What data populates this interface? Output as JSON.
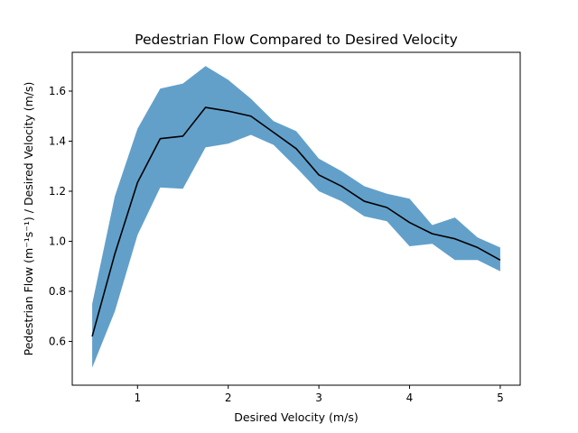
{
  "chart_data": {
    "type": "area",
    "title": "Pedestrian Flow Compared to Desired Velocity",
    "xlabel": "Desired Velocity (m/s)",
    "ylabel": "Pedestrian Flow (m⁻¹s⁻¹) / Desired Velocity (m/s)",
    "xlim": [
      0.28,
      5.22
    ],
    "ylim": [
      0.425,
      1.755
    ],
    "x_ticks": [
      1,
      2,
      3,
      4,
      5
    ],
    "x_tick_labels": [
      "1",
      "2",
      "3",
      "4",
      "5"
    ],
    "y_ticks": [
      0.6,
      0.8,
      1.0,
      1.2,
      1.4,
      1.6
    ],
    "y_tick_labels": [
      "0.6",
      "0.8",
      "1.0",
      "1.2",
      "1.4",
      "1.6"
    ],
    "grid": false,
    "x": [
      0.5,
      0.75,
      1.0,
      1.25,
      1.5,
      1.75,
      2.0,
      2.25,
      2.5,
      2.75,
      3.0,
      3.25,
      3.5,
      3.75,
      4.0,
      4.25,
      4.5,
      4.75,
      5.0
    ],
    "mean": [
      0.62,
      0.95,
      1.235,
      1.41,
      1.42,
      1.535,
      1.52,
      1.5,
      1.435,
      1.37,
      1.265,
      1.22,
      1.16,
      1.135,
      1.075,
      1.03,
      1.01,
      0.975,
      0.925
    ],
    "upper": [
      0.75,
      1.18,
      1.45,
      1.61,
      1.63,
      1.7,
      1.645,
      1.57,
      1.48,
      1.44,
      1.33,
      1.28,
      1.22,
      1.19,
      1.17,
      1.065,
      1.095,
      1.015,
      0.975
    ],
    "lower": [
      0.495,
      0.72,
      1.025,
      1.215,
      1.21,
      1.375,
      1.39,
      1.425,
      1.385,
      1.295,
      1.2,
      1.16,
      1.1,
      1.08,
      0.98,
      0.99,
      0.925,
      0.925,
      0.88
    ],
    "colors": {
      "band": "#1f77b4",
      "band_opacity": 0.7,
      "line": "#000000"
    }
  }
}
